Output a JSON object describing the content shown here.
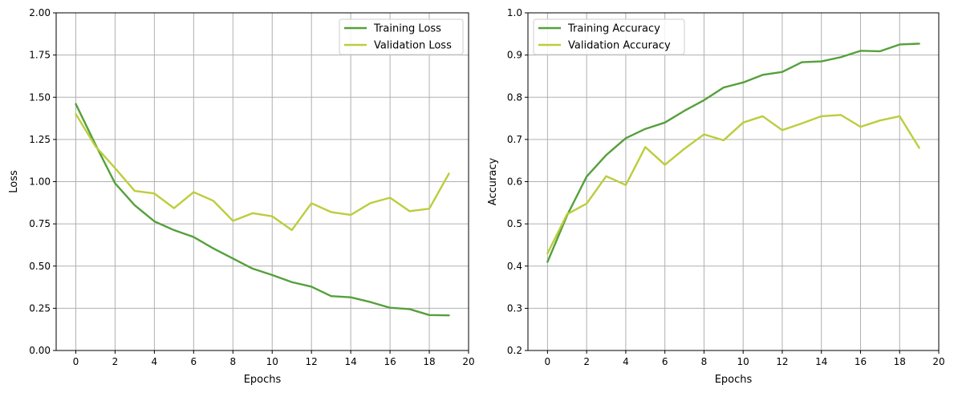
{
  "colors": {
    "training": "#55a03c",
    "validation": "#bccd3c",
    "grid": "#b0b0b0",
    "axis": "#000000"
  },
  "chart_data": [
    {
      "type": "line",
      "title": "",
      "xlabel": "Epochs",
      "ylabel": "Loss",
      "xlim": [
        -1,
        20
      ],
      "ylim": [
        0,
        2
      ],
      "xticks": [
        0,
        2,
        4,
        6,
        8,
        10,
        12,
        14,
        16,
        18,
        20
      ],
      "xtick_labels": [
        "0",
        "2",
        "4",
        "6",
        "8",
        "10",
        "12",
        "14",
        "16",
        "18",
        "20"
      ],
      "yticks": [
        0,
        0.25,
        0.5,
        0.75,
        1.0,
        1.25,
        1.5,
        1.75,
        2.0
      ],
      "ytick_labels": [
        "0.00",
        "0.25",
        "0.50",
        "0.75",
        "1.00",
        "1.25",
        "1.50",
        "1.75",
        "2.00"
      ],
      "grid": true,
      "legend_position": "top-right",
      "x": [
        0,
        1,
        2,
        3,
        4,
        5,
        6,
        7,
        8,
        9,
        10,
        11,
        12,
        13,
        14,
        15,
        16,
        17,
        18,
        19
      ],
      "series": [
        {
          "name": "Training Loss",
          "color": "#55a03c",
          "values": [
            1.46,
            1.22,
            0.99,
            0.86,
            0.765,
            0.713,
            0.672,
            0.605,
            0.545,
            0.485,
            0.447,
            0.405,
            0.378,
            0.322,
            0.315,
            0.287,
            0.253,
            0.245,
            0.21,
            0.208
          ]
        },
        {
          "name": "Validation Loss",
          "color": "#bccd3c",
          "values": [
            1.4,
            1.21,
            1.08,
            0.945,
            0.93,
            0.843,
            0.938,
            0.887,
            0.768,
            0.813,
            0.795,
            0.713,
            0.872,
            0.82,
            0.803,
            0.873,
            0.905,
            0.825,
            0.84,
            1.048
          ]
        }
      ]
    },
    {
      "type": "line",
      "title": "",
      "xlabel": "Epochs",
      "ylabel": "Accuracy",
      "xlim": [
        -1,
        20
      ],
      "ylim": [
        0.2,
        1.0
      ],
      "xticks": [
        0,
        2,
        4,
        6,
        8,
        10,
        12,
        14,
        16,
        18,
        20
      ],
      "xtick_labels": [
        "0",
        "2",
        "4",
        "6",
        "8",
        "10",
        "12",
        "14",
        "16",
        "18",
        "20"
      ],
      "yticks": [
        0.2,
        0.3,
        0.4,
        0.5,
        0.6,
        0.7,
        0.8,
        0.9,
        1.0
      ],
      "ytick_labels": [
        "0.2",
        "0.3",
        "0.4",
        "0.5",
        "0.6",
        "0.7",
        "0.8",
        "0.9",
        "1.0"
      ],
      "grid": true,
      "legend_position": "top-left",
      "x": [
        0,
        1,
        2,
        3,
        4,
        5,
        6,
        7,
        8,
        9,
        10,
        11,
        12,
        13,
        14,
        15,
        16,
        17,
        18,
        19
      ],
      "series": [
        {
          "name": "Training Accuracy",
          "color": "#55a03c",
          "values": [
            0.41,
            0.52,
            0.612,
            0.663,
            0.703,
            0.725,
            0.74,
            0.768,
            0.793,
            0.823,
            0.835,
            0.853,
            0.86,
            0.883,
            0.885,
            0.895,
            0.91,
            0.909,
            0.925,
            0.927
          ]
        },
        {
          "name": "Validation Accuracy",
          "color": "#bccd3c",
          "values": [
            0.43,
            0.523,
            0.548,
            0.613,
            0.592,
            0.682,
            0.64,
            0.678,
            0.712,
            0.698,
            0.74,
            0.755,
            0.722,
            0.738,
            0.755,
            0.758,
            0.73,
            0.745,
            0.755,
            0.68
          ]
        }
      ]
    }
  ]
}
